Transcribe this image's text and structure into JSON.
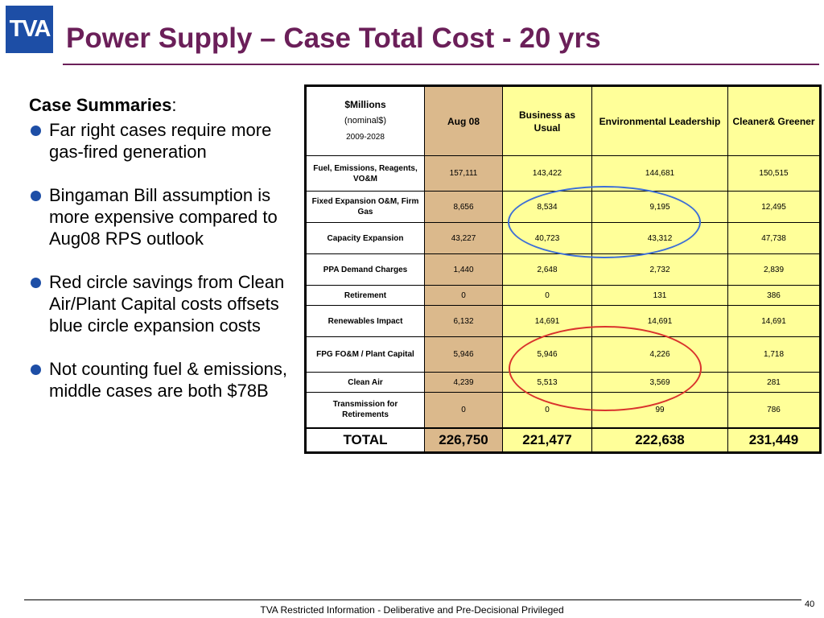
{
  "logo": {
    "text": "TVA"
  },
  "title": "Power Supply – Case Total Cost - 20 yrs",
  "summary": {
    "heading": "Case Summaries",
    "heading_suffix": ":",
    "bullets": [
      "Far right cases require more gas-fired generation",
      "Bingaman Bill assumption is more expensive compared to Aug08 RPS outlook",
      "Red circle savings from Clean Air/Plant Capital costs offsets blue circle expansion costs",
      "Not counting fuel & emissions, middle cases are both $78B"
    ]
  },
  "table": {
    "unit_prefix": "$",
    "unit_bold": "Millions",
    "unit_line2": "(nominal$)",
    "unit_line3": "2009-2028",
    "columns": [
      "Aug 08",
      "Business as Usual",
      "Environmental Leadership",
      "Cleaner& Greener"
    ],
    "rows": [
      {
        "label": "Fuel, Emissions, Reagents, VO&M",
        "values": [
          "157,111",
          "143,422",
          "144,681",
          "150,515"
        ]
      },
      {
        "label": "Fixed Expansion O&M, Firm Gas",
        "values": [
          "8,656",
          "8,534",
          "9,195",
          "12,495"
        ]
      },
      {
        "label": "Capacity Expansion",
        "values": [
          "43,227",
          "40,723",
          "43,312",
          "47,738"
        ]
      },
      {
        "label": "PPA Demand Charges",
        "values": [
          "1,440",
          "2,648",
          "2,732",
          "2,839"
        ]
      },
      {
        "label": "Retirement",
        "values": [
          "0",
          "0",
          "131",
          "386"
        ]
      },
      {
        "label": "Renewables Impact",
        "values": [
          "6,132",
          "14,691",
          "14,691",
          "14,691"
        ]
      },
      {
        "label": "FPG FO&M / Plant Capital",
        "values": [
          "5,946",
          "5,946",
          "4,226",
          "1,718"
        ]
      },
      {
        "label": "Clean Air",
        "values": [
          "4,239",
          "5,513",
          "3,569",
          "281"
        ]
      },
      {
        "label": "Transmission for Retirements",
        "values": [
          "0",
          "0",
          "99",
          "786"
        ]
      }
    ],
    "total": {
      "label": "TOTAL",
      "values": [
        "226,750",
        "221,477",
        "222,638",
        "231,449"
      ]
    }
  },
  "annotations": {
    "blue_circle_color": "#3d6fd6",
    "red_circle_color": "#d9332d"
  },
  "colors": {
    "title": "#6b1f59",
    "aug_column": "#dbb98c",
    "case_columns": "#ffff99",
    "bullet": "#1d4ea6"
  },
  "footer": {
    "text": "TVA Restricted Information - Deliberative and Pre-Decisional Privileged",
    "page_number": "40"
  }
}
